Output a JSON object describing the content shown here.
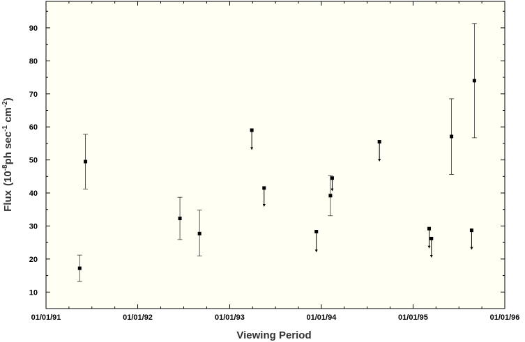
{
  "chart_data": {
    "type": "scatter",
    "xlabel": "Viewing Period",
    "ylabel": "Flux",
    "ylabel_units": "(10",
    "ylabel_exp1": "-8",
    "ylabel_mid": "ph sec",
    "ylabel_exp2": "-1",
    "ylabel_cm": " cm",
    "ylabel_exp3": "-2",
    "ylabel_end": ")",
    "x_axis": {
      "type": "date",
      "range": [
        "1991-01-01",
        "1996-01-01"
      ],
      "ticks": [
        {
          "date": "1991-01-01",
          "label": "01/01/91"
        },
        {
          "date": "1992-01-01",
          "label": "01/01/92"
        },
        {
          "date": "1993-01-01",
          "label": "01/01/93"
        },
        {
          "date": "1994-01-01",
          "label": "01/01/94"
        },
        {
          "date": "1995-01-01",
          "label": "01/01/95"
        },
        {
          "date": "1996-01-01",
          "label": "01/01/96"
        }
      ]
    },
    "y_axis": {
      "range": [
        5,
        98
      ],
      "ticks": [
        10,
        20,
        30,
        40,
        50,
        60,
        70,
        80,
        90
      ]
    },
    "grid": false,
    "detections": [
      {
        "date": "1991-05-15",
        "y": 17.2,
        "err_low": 13.2,
        "err_high": 21.2
      },
      {
        "date": "1991-06-07",
        "y": 49.5,
        "err_low": 41.2,
        "err_high": 57.8
      },
      {
        "date": "1992-06-17",
        "y": 32.3,
        "err_low": 25.9,
        "err_high": 38.7
      },
      {
        "date": "1992-09-03",
        "y": 27.7,
        "err_low": 20.9,
        "err_high": 34.8
      },
      {
        "date": "1994-02-06",
        "y": 39.2,
        "err_low": 33.1,
        "err_high": 45.3
      },
      {
        "date": "1995-06-03",
        "y": 57.1,
        "err_low": 45.6,
        "err_high": 68.5
      },
      {
        "date": "1995-09-02",
        "y": 74.0,
        "err_low": 56.7,
        "err_high": 91.3
      }
    ],
    "upper_limits": [
      {
        "date": "1993-03-30",
        "y": 59.0,
        "arrow_to": 53.0
      },
      {
        "date": "1993-05-18",
        "y": 41.5,
        "arrow_to": 35.8
      },
      {
        "date": "1993-12-12",
        "y": 28.3,
        "arrow_to": 22.0
      },
      {
        "date": "1994-02-13",
        "y": 44.5,
        "arrow_to": 40.5
      },
      {
        "date": "1994-08-20",
        "y": 55.5,
        "arrow_to": 49.5
      },
      {
        "date": "1995-03-06",
        "y": 29.2,
        "arrow_to": 23.2
      },
      {
        "date": "1995-03-15",
        "y": 26.2,
        "arrow_to": 20.4
      },
      {
        "date": "1995-08-22",
        "y": 28.7,
        "arrow_to": 22.8
      }
    ]
  }
}
